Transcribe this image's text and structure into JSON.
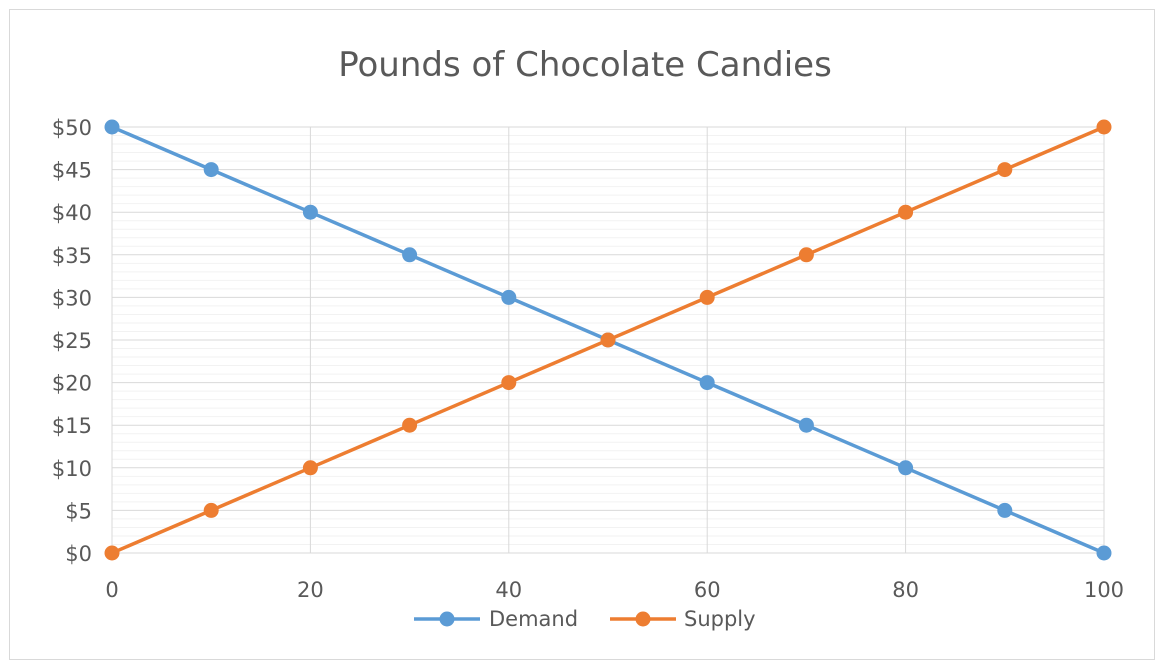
{
  "chart_data": {
    "type": "line",
    "title": "Pounds of Chocolate Candies",
    "xlabel": "",
    "ylabel": "",
    "x": [
      0,
      10,
      20,
      30,
      40,
      50,
      60,
      70,
      80,
      90,
      100
    ],
    "xlim": [
      0,
      100
    ],
    "ylim": [
      0,
      50
    ],
    "x_ticks": [
      0,
      20,
      40,
      60,
      80,
      100
    ],
    "x_tick_labels": [
      "0",
      "20",
      "40",
      "60",
      "80",
      "100"
    ],
    "y_ticks": [
      0,
      5,
      10,
      15,
      20,
      25,
      30,
      35,
      40,
      45,
      50
    ],
    "y_tick_labels": [
      "$0",
      "$5",
      "$10",
      "$15",
      "$20",
      "$25",
      "$30",
      "$35",
      "$40",
      "$45",
      "$50"
    ],
    "grid": true,
    "legend_position": "bottom",
    "series": [
      {
        "name": "Demand",
        "color": "#5b9bd5",
        "values": [
          50,
          45,
          40,
          35,
          30,
          25,
          20,
          15,
          10,
          5,
          0
        ]
      },
      {
        "name": "Supply",
        "color": "#ed7d31",
        "values": [
          0,
          5,
          10,
          15,
          20,
          25,
          30,
          35,
          40,
          45,
          50
        ]
      }
    ]
  }
}
